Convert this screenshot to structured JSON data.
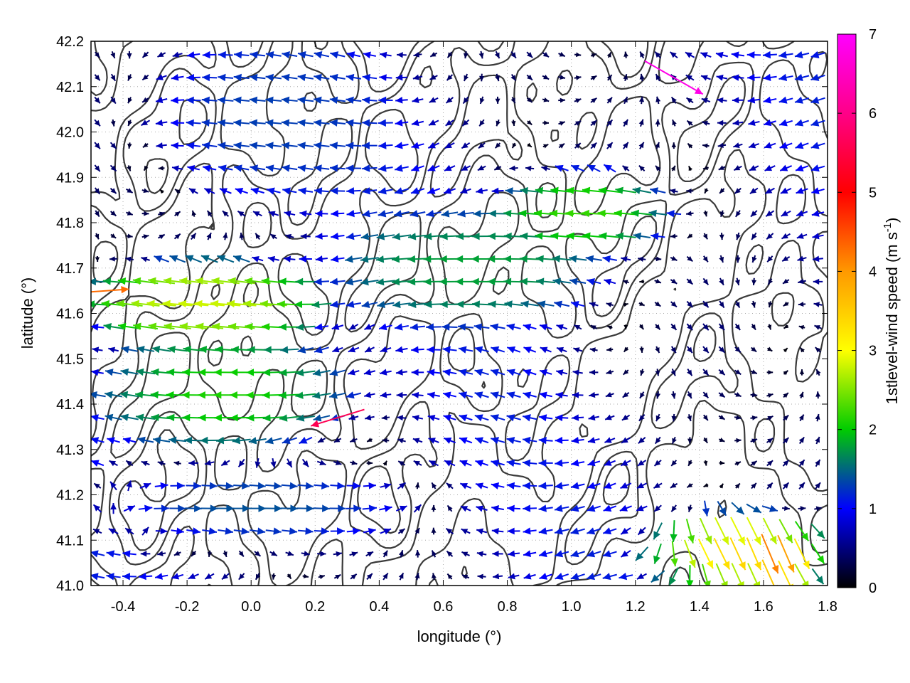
{
  "chart_data": {
    "type": "vector-field",
    "xlabel": "longitude (°)",
    "ylabel": "latitude (°)",
    "xlim": [
      -0.5,
      1.8
    ],
    "ylim": [
      41.0,
      42.2
    ],
    "xticks": [
      "-0.4",
      "-0.2",
      "0.0",
      "0.2",
      "0.4",
      "0.6",
      "0.8",
      "1.0",
      "1.2",
      "1.4",
      "1.6",
      "1.8"
    ],
    "yticks": [
      "41.0",
      "41.1",
      "41.2",
      "41.3",
      "41.4",
      "41.5",
      "41.6",
      "41.7",
      "41.8",
      "41.9",
      "42.0",
      "42.1",
      "42.2"
    ],
    "grid": true,
    "colorbar": {
      "label_main": "1stlevel-wind speed (m s",
      "label_sup": "-1",
      "label_end": ")",
      "range": [
        0,
        7
      ],
      "ticks": [
        "0",
        "1",
        "2",
        "3",
        "4",
        "5",
        "6",
        "7"
      ],
      "colors": [
        "#000000",
        "#0000ff",
        "#00cc00",
        "#ffff00",
        "#ff8800",
        "#ff0000",
        "#ff00ff"
      ]
    },
    "regions": [
      {
        "x": [
          -0.5,
          0.5
        ],
        "y": [
          41.1,
          41.25
        ],
        "u": 1.2,
        "v": 0.0,
        "speed": 1.4
      },
      {
        "x": [
          -0.45,
          0.3
        ],
        "y": [
          41.3,
          41.55
        ],
        "u": -1.8,
        "v": 0.0,
        "speed": 2.1
      },
      {
        "x": [
          -0.5,
          0.2
        ],
        "y": [
          41.55,
          41.7
        ],
        "u": -2.6,
        "v": 0.2,
        "speed": 2.8
      },
      {
        "x": [
          0.3,
          1.1
        ],
        "y": [
          41.6,
          41.8
        ],
        "u": -1.6,
        "v": 0.0,
        "speed": 1.8
      },
      {
        "x": [
          0.8,
          1.3
        ],
        "y": [
          41.75,
          41.9
        ],
        "u": -2.0,
        "v": 0.1,
        "speed": 2.2
      },
      {
        "x": [
          1.25,
          1.8
        ],
        "y": [
          41.0,
          41.15
        ],
        "u": 0.6,
        "v": -1.1,
        "speed": 3.4
      },
      {
        "x": [
          1.5,
          1.75
        ],
        "y": [
          41.0,
          41.12
        ],
        "u": 0.5,
        "v": -1.2,
        "speed": 4.2
      },
      {
        "x": [
          -0.3,
          0.4
        ],
        "y": [
          41.85,
          42.2
        ],
        "u": -1.2,
        "v": 0.1,
        "speed": 1.3
      }
    ],
    "highlights": [
      {
        "x": 1.32,
        "y": 42.12,
        "u": 1.4,
        "v": -0.8,
        "speed": 6.8
      },
      {
        "x": 0.27,
        "y": 41.37,
        "u": -1.3,
        "v": -0.4,
        "speed": 5.6
      },
      {
        "x": -0.45,
        "y": 41.65,
        "u": 2.8,
        "v": 0.2,
        "speed": 4.3
      }
    ],
    "contour_levels": 3
  }
}
